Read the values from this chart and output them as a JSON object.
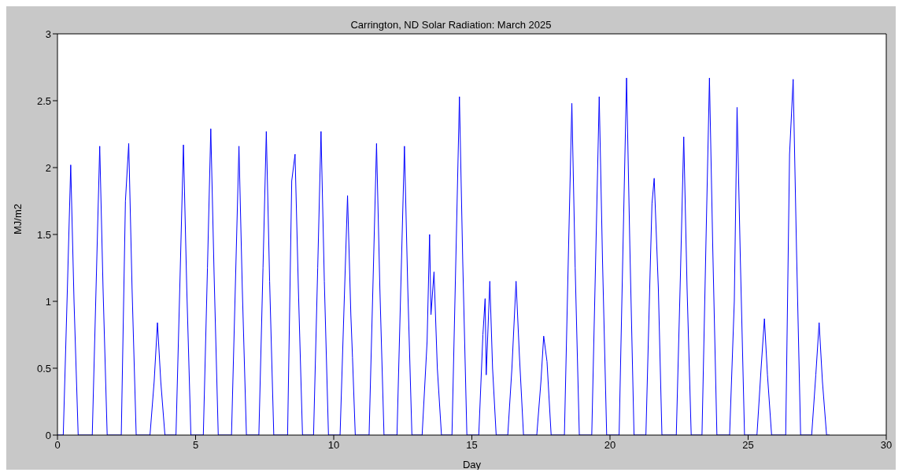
{
  "chart_data": {
    "type": "line",
    "title": "Carrington, ND Solar Radiation: March 2025",
    "xlabel": "Day",
    "ylabel": "MJ/m2",
    "xlim": [
      0,
      30
    ],
    "xticks": [
      0,
      5,
      10,
      15,
      20,
      25,
      30
    ],
    "ylim": [
      0,
      3
    ],
    "yticks": [
      0,
      0.5,
      1,
      1.5,
      2,
      2.5,
      3
    ],
    "grid": false,
    "legend": false,
    "marker": "none",
    "line_style": "solid",
    "x": [
      0,
      0.21,
      0.36,
      0.48,
      0.6,
      0.75,
      1.26,
      1.41,
      1.53,
      1.65,
      1.8,
      2.31,
      2.46,
      2.58,
      2.7,
      2.85,
      3.35,
      3.5,
      3.62,
      3.74,
      3.89,
      4.29,
      4.44,
      4.56,
      4.68,
      4.83,
      5.28,
      5.43,
      5.55,
      5.67,
      5.82,
      6.3,
      6.45,
      6.57,
      6.69,
      6.84,
      7.29,
      7.44,
      7.56,
      7.68,
      7.83,
      8.33,
      8.48,
      8.6,
      8.72,
      8.87,
      9.27,
      9.42,
      9.54,
      9.66,
      9.81,
      10.23,
      10.38,
      10.5,
      10.62,
      10.68,
      10.78,
      11.28,
      11.43,
      11.55,
      11.67,
      11.82,
      12.29,
      12.44,
      12.56,
      12.68,
      12.83,
      13.2,
      13.38,
      13.47,
      13.52,
      13.63,
      13.75,
      13.9,
      14.28,
      14.43,
      14.55,
      14.67,
      14.82,
      15.25,
      15.4,
      15.48,
      15.52,
      15.65,
      15.75,
      15.88,
      16.3,
      16.45,
      16.6,
      16.72,
      16.87,
      17.35,
      17.5,
      17.6,
      17.72,
      17.87,
      18.35,
      18.5,
      18.62,
      18.74,
      18.89,
      19.34,
      19.49,
      19.61,
      19.73,
      19.88,
      20.33,
      20.48,
      20.6,
      20.72,
      20.87,
      21.3,
      21.45,
      21.52,
      21.6,
      21.75,
      21.88,
      22.4,
      22.55,
      22.67,
      22.79,
      22.94,
      23.33,
      23.48,
      23.6,
      23.72,
      23.87,
      24.33,
      24.5,
      24.6,
      24.72,
      24.87,
      25.32,
      25.47,
      25.59,
      25.7,
      25.85,
      26.36,
      26.5,
      26.63,
      26.75,
      26.9,
      27.3,
      27.45,
      27.57,
      27.69,
      27.84,
      27.95
    ],
    "series": [
      {
        "color": "#0000ff",
        "values": [
          0,
          0,
          1.1,
          2.02,
          1.0,
          0,
          0,
          1.2,
          2.16,
          1.1,
          0,
          0,
          1.75,
          2.18,
          1.1,
          0,
          0,
          0.4,
          0.84,
          0.4,
          0,
          0,
          1.2,
          2.17,
          1.1,
          0,
          0,
          1.25,
          2.29,
          1.2,
          0,
          0,
          1.2,
          2.16,
          1.1,
          0,
          0,
          1.25,
          2.27,
          1.15,
          0,
          0,
          1.9,
          2.1,
          1.1,
          0,
          0,
          1.25,
          2.27,
          1.15,
          0,
          0,
          1.0,
          1.79,
          0.9,
          0.58,
          0,
          0,
          1.2,
          2.18,
          1.1,
          0,
          0,
          1.2,
          2.16,
          1.1,
          0,
          0,
          0.7,
          1.5,
          0.9,
          1.22,
          0.5,
          0,
          0,
          1.4,
          2.53,
          1.3,
          0,
          0,
          0.75,
          1.02,
          0.45,
          1.15,
          0.5,
          0,
          0,
          0.5,
          1.15,
          0.6,
          0,
          0,
          0.4,
          0.74,
          0.55,
          0,
          0,
          1.4,
          2.48,
          1.25,
          0,
          0,
          1.4,
          2.53,
          1.3,
          0,
          0,
          1.5,
          2.67,
          1.4,
          0,
          0,
          1.2,
          1.73,
          1.92,
          1.1,
          0,
          0,
          1.2,
          2.23,
          1.1,
          0,
          0,
          1.5,
          2.67,
          1.4,
          0,
          0,
          1.0,
          2.45,
          1.3,
          0,
          0,
          0.5,
          0.87,
          0.45,
          0,
          0,
          2.1,
          2.66,
          1.4,
          0,
          0,
          0.45,
          0.84,
          0.4,
          0,
          0
        ]
      }
    ]
  }
}
